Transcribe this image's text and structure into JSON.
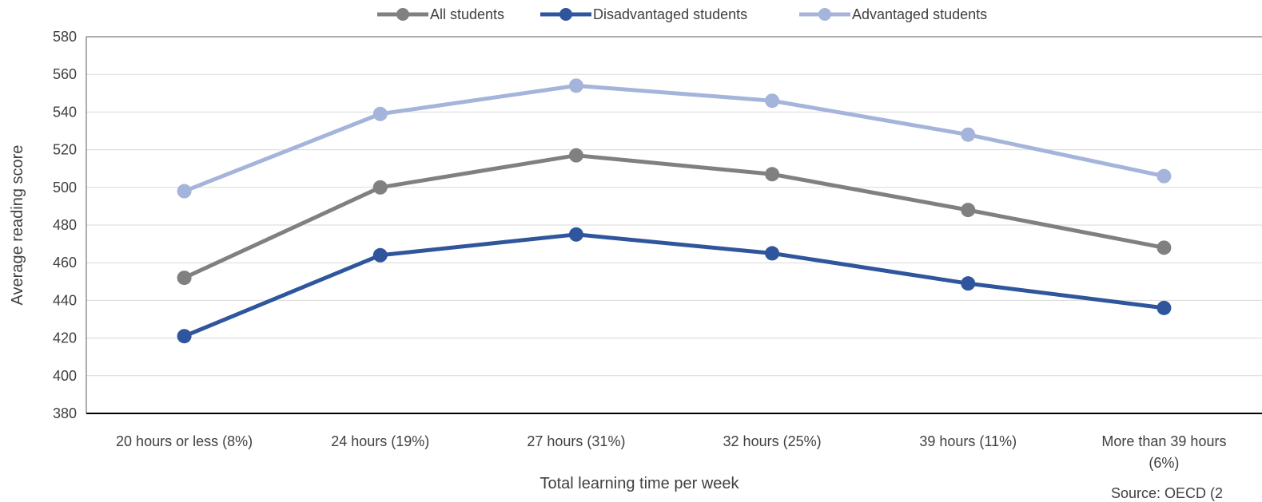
{
  "chart_data": {
    "type": "line",
    "categories": [
      "20 hours or less   (8%)",
      "24 hours   (19%)",
      "27 hours   (31%)",
      "32 hours   (25%)",
      "39 hours   (11%)",
      "More than 39 hours (6%)"
    ],
    "category_lines": [
      [
        "20 hours or less   (8%)"
      ],
      [
        "24 hours   (19%)"
      ],
      [
        "27 hours   (31%)"
      ],
      [
        "32 hours   (25%)"
      ],
      [
        "39 hours   (11%)"
      ],
      [
        "More than 39 hours",
        "(6%)"
      ]
    ],
    "series": [
      {
        "name": "All students",
        "color": "#808080",
        "values": [
          452,
          500,
          517,
          507,
          488,
          468
        ]
      },
      {
        "name": "Disadvantaged students",
        "color": "#2f569c",
        "values": [
          421,
          464,
          475,
          465,
          449,
          436
        ]
      },
      {
        "name": "Advantaged students",
        "color": "#a4b4da",
        "values": [
          498,
          539,
          554,
          546,
          528,
          506
        ]
      }
    ],
    "xlabel": "Total learning time per week",
    "ylabel": "Average reading score",
    "ylim": [
      380,
      580
    ],
    "yticks": [
      380,
      400,
      420,
      440,
      460,
      480,
      500,
      520,
      540,
      560,
      580
    ],
    "grid": true,
    "legend": "top-center",
    "source_text": "Source: OECD (2"
  }
}
